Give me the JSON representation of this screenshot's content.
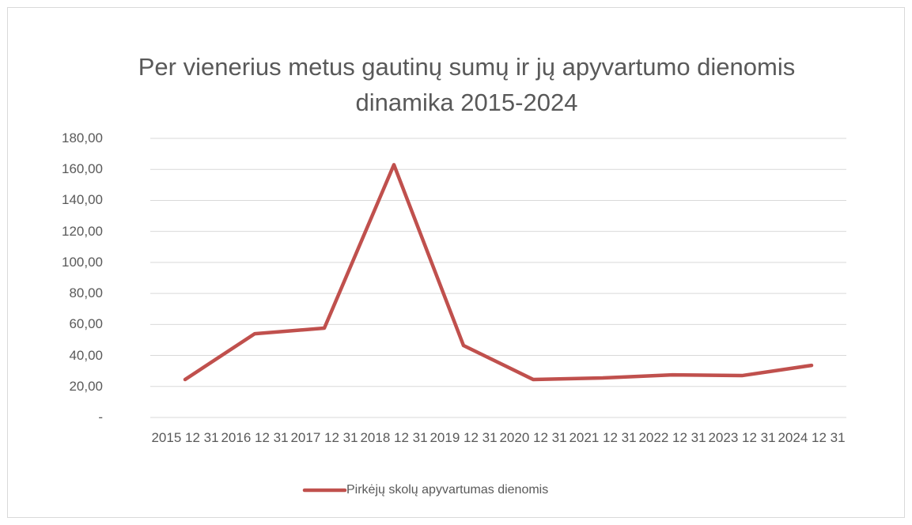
{
  "chart_data": {
    "type": "line",
    "title": "Per vienerius metus gautinų sumų  ir jų apyvartumo dienomis dinamika 2015-2024",
    "categories": [
      "2015 12 31",
      "2016 12 31",
      "2017 12 31",
      "2018 12 31",
      "2019 12 31",
      "2020 12 31",
      "2021 12 31",
      "2022 12 31",
      "2023 12 31",
      "2024 12 31"
    ],
    "series": [
      {
        "name": "Pirkėjų skolų apyvartumas dienomis",
        "color": "#c0504d",
        "values": [
          24.5,
          54,
          57.6,
          163,
          46.4,
          24.5,
          25.5,
          27.5,
          27,
          33.6
        ]
      }
    ],
    "ylim": [
      0,
      180
    ],
    "yticks": [
      {
        "value": 0,
        "label": "-"
      },
      {
        "value": 20,
        "label": "20,00"
      },
      {
        "value": 40,
        "label": "40,00"
      },
      {
        "value": 60,
        "label": "60,00"
      },
      {
        "value": 80,
        "label": "80,00"
      },
      {
        "value": 100,
        "label": "100,00"
      },
      {
        "value": 120,
        "label": "120,00"
      },
      {
        "value": 140,
        "label": "140,00"
      },
      {
        "value": 160,
        "label": "160,00"
      },
      {
        "value": 180,
        "label": "180,00"
      }
    ],
    "grid": true,
    "legend": "bottom"
  }
}
